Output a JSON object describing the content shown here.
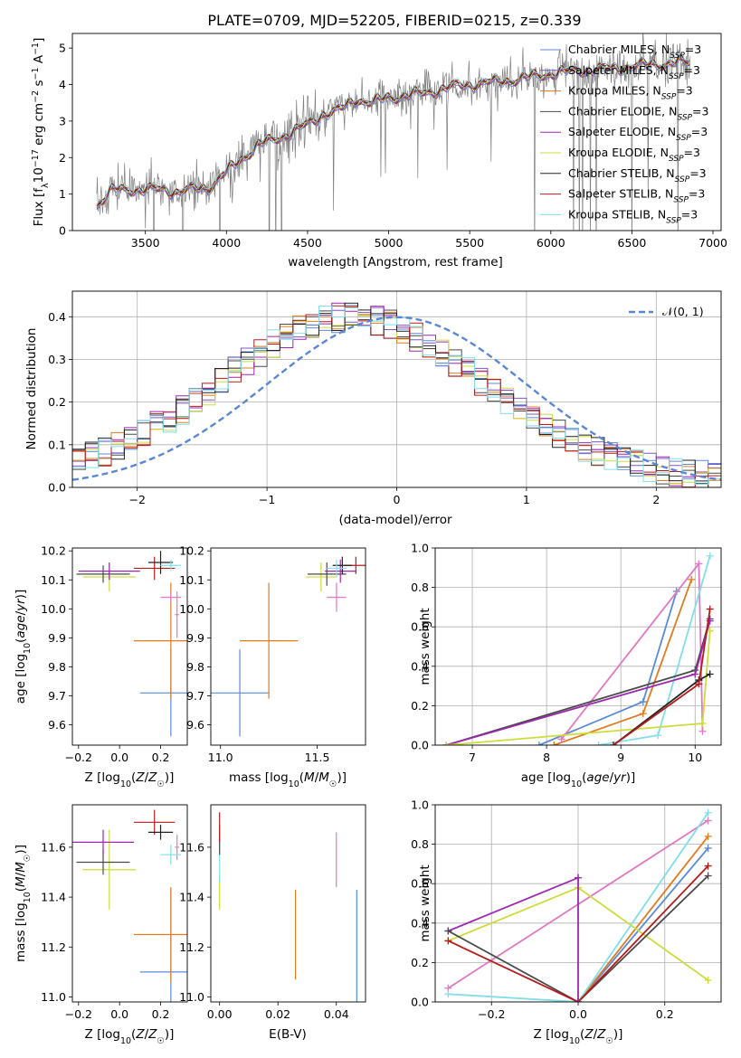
{
  "title": "PLATE=0709, MJD=52205, FIBERID=0215, z=0.339",
  "colors": {
    "data_spectrum": "#808080",
    "Chabrier MILES": "#5a8bd8",
    "Salpeter MILES": "#7e57c2",
    "Kroupa MILES": "#e07b20",
    "Chabrier ELODIE": "#4a4a4a",
    "Salpeter ELODIE": "#9c27b0",
    "Kroupa ELODIE": "#cddc39",
    "Chabrier STELIB": "#222222",
    "Salpeter STELIB": "#b71c1c",
    "Kroupa STELIB": "#80deea",
    "pink": "#e377c2",
    "normal_curve": "#5b86d6"
  },
  "legend_spectrum": [
    {
      "pre": "Chabrier MILES, N",
      "sub": "SSP",
      "post": "=3",
      "color_key": "Chabrier MILES"
    },
    {
      "pre": "Salpeter MILES, N",
      "sub": "SSP",
      "post": "=3",
      "color_key": "Salpeter MILES"
    },
    {
      "pre": "Kroupa MILES, N",
      "sub": "SSP",
      "post": "=3",
      "color_key": "Kroupa MILES"
    },
    {
      "pre": "Chabrier ELODIE, N",
      "sub": "SSP",
      "post": "=3",
      "color_key": "Chabrier ELODIE"
    },
    {
      "pre": "Salpeter ELODIE, N",
      "sub": "SSP",
      "post": "=3",
      "color_key": "Salpeter ELODIE"
    },
    {
      "pre": "Kroupa ELODIE, N",
      "sub": "SSP",
      "post": "=3",
      "color_key": "Kroupa ELODIE"
    },
    {
      "pre": "Chabrier STELIB, N",
      "sub": "SSP",
      "post": "=3",
      "color_key": "Chabrier STELIB"
    },
    {
      "pre": "Salpeter STELIB, N",
      "sub": "SSP",
      "post": "=3",
      "color_key": "Salpeter STELIB"
    },
    {
      "pre": "Kroupa STELIB, N",
      "sub": "SSP",
      "post": "=3",
      "color_key": "Kroupa STELIB"
    }
  ],
  "legend_hist": "𝒩(0, 1)",
  "chart_data": [
    {
      "id": "spectrum",
      "type": "line",
      "xlabel": "wavelength [Angstrom, rest frame]",
      "ylabel": "Flux [f_λ 10^-17 erg cm^-2 s^-1 A^-1]",
      "xlim": [
        3050,
        7050
      ],
      "ylim": [
        0,
        5.4
      ],
      "xticks": [
        "3500",
        "4000",
        "4500",
        "5000",
        "5500",
        "6000",
        "6500",
        "7000"
      ],
      "yticks": [
        "0",
        "1",
        "2",
        "3",
        "4",
        "5"
      ],
      "continuum": {
        "x": [
          3200,
          3300,
          3400,
          3500,
          3600,
          3700,
          3800,
          3900,
          4000,
          4100,
          4200,
          4300,
          4400,
          4500,
          4600,
          4700,
          4800,
          4900,
          5000,
          5200,
          5400,
          5600,
          5800,
          6000,
          6200,
          6400,
          6600,
          6800,
          6860
        ],
        "y": [
          0.7,
          1.1,
          1.15,
          1.1,
          1.15,
          1.05,
          1.15,
          1.2,
          1.6,
          2.0,
          2.35,
          2.5,
          2.7,
          2.9,
          3.2,
          3.3,
          3.6,
          3.5,
          3.65,
          3.75,
          3.95,
          4.05,
          4.15,
          4.3,
          4.4,
          4.45,
          4.55,
          4.6,
          4.6
        ]
      },
      "model_series": [
        "Chabrier MILES",
        "Salpeter MILES",
        "Kroupa MILES",
        "Chabrier ELODIE",
        "Salpeter ELODIE",
        "Kroupa ELODIE",
        "Chabrier STELIB",
        "Salpeter STELIB",
        "Kroupa STELIB"
      ]
    },
    {
      "id": "residuals",
      "type": "histogram",
      "xlabel": "(data-model)/error",
      "ylabel": "Normed distribution",
      "xlim": [
        -2.5,
        2.5
      ],
      "ylim": [
        0,
        0.46
      ],
      "xticks": [
        "−2",
        "−1",
        "0",
        "1",
        "2"
      ],
      "yticks": [
        "0.0",
        "0.1",
        "0.2",
        "0.3",
        "0.4"
      ],
      "bin_width": 0.1,
      "grid": true,
      "reference_curve": "normal(0,1)"
    },
    {
      "id": "age_vs_Z",
      "type": "scatter",
      "xlabel": "Z [log10(Z/Z☉)]",
      "ylabel": "age [log10(age/yr)]",
      "xlim": [
        -0.23,
        0.33
      ],
      "ylim": [
        9.53,
        10.21
      ],
      "xticks": [
        "−0.2",
        "0.0",
        "0.2"
      ],
      "yticks": [
        "9.6",
        "9.7",
        "9.8",
        "9.9",
        "10.0",
        "10.1",
        "10.2"
      ],
      "points": [
        {
          "x": 0.25,
          "y": 9.71,
          "xerr": 0.15,
          "yerr": 0.15,
          "color_key": "Chabrier MILES"
        },
        {
          "x": 0.25,
          "y": 9.89,
          "xerr": 0.18,
          "yerr": 0.2,
          "color_key": "Kroupa MILES"
        },
        {
          "x": 0.28,
          "y": 9.98,
          "xerr": 0.01,
          "yerr": 0.08,
          "color_key": "pink"
        },
        {
          "x": 0.25,
          "y": 10.04,
          "xerr": 0.05,
          "yerr": 0.02,
          "color_key": "pink"
        },
        {
          "x": -0.05,
          "y": 10.11,
          "xerr": 0.13,
          "yerr": 0.05,
          "color_key": "Kroupa ELODIE"
        },
        {
          "x": -0.08,
          "y": 10.12,
          "xerr": 0.13,
          "yerr": 0.03,
          "color_key": "Chabrier ELODIE"
        },
        {
          "x": -0.05,
          "y": 10.13,
          "xerr": 0.15,
          "yerr": 0.03,
          "color_key": "Salpeter ELODIE"
        },
        {
          "x": 0.17,
          "y": 10.14,
          "xerr": 0.1,
          "yerr": 0.04,
          "color_key": "Salpeter STELIB"
        },
        {
          "x": 0.2,
          "y": 10.16,
          "xerr": 0.06,
          "yerr": 0.04,
          "color_key": "Chabrier STELIB"
        },
        {
          "x": 0.25,
          "y": 10.15,
          "xerr": 0.05,
          "yerr": 0.02,
          "color_key": "Kroupa STELIB"
        }
      ]
    },
    {
      "id": "age_vs_mass",
      "type": "scatter",
      "xlabel": "mass [log10(M/M☉)]",
      "ylabel": "",
      "xlim": [
        10.95,
        11.75
      ],
      "ylim": [
        9.53,
        10.21
      ],
      "xticks": [
        "11.0",
        "11.5"
      ],
      "yticks": [
        "9.6",
        "9.7",
        "9.8",
        "9.9",
        "10.0",
        "10.1",
        "10.2"
      ],
      "points": [
        {
          "x": 11.1,
          "y": 9.71,
          "xerr": 0.15,
          "yerr": 0.15,
          "color_key": "Chabrier MILES"
        },
        {
          "x": 11.25,
          "y": 9.89,
          "xerr": 0.15,
          "yerr": 0.2,
          "color_key": "Kroupa MILES"
        },
        {
          "x": 11.6,
          "y": 10.04,
          "xerr": 0.05,
          "yerr": 0.05,
          "color_key": "pink"
        },
        {
          "x": 11.52,
          "y": 10.11,
          "xerr": 0.08,
          "yerr": 0.05,
          "color_key": "Kroupa ELODIE"
        },
        {
          "x": 11.55,
          "y": 10.12,
          "xerr": 0.1,
          "yerr": 0.04,
          "color_key": "Chabrier ELODIE"
        },
        {
          "x": 11.62,
          "y": 10.13,
          "xerr": 0.08,
          "yerr": 0.04,
          "color_key": "Salpeter ELODIE"
        },
        {
          "x": 11.7,
          "y": 10.15,
          "xerr": 0.06,
          "yerr": 0.03,
          "color_key": "Salpeter STELIB"
        },
        {
          "x": 11.63,
          "y": 10.15,
          "xerr": 0.05,
          "yerr": 0.03,
          "color_key": "Chabrier STELIB"
        },
        {
          "x": 11.6,
          "y": 10.14,
          "xerr": 0.05,
          "yerr": 0.03,
          "color_key": "Kroupa STELIB"
        }
      ]
    },
    {
      "id": "weight_vs_age",
      "type": "line",
      "xlabel": "age [log10(age/yr)]",
      "ylabel": "mass weight",
      "xlim": [
        6.5,
        10.35
      ],
      "ylim": [
        0,
        1
      ],
      "xticks": [
        "7",
        "8",
        "9",
        "10"
      ],
      "yticks": [
        "0.0",
        "0.2",
        "0.4",
        "0.6",
        "0.8",
        "1.0"
      ],
      "grid": true,
      "series": [
        {
          "color_key": "Chabrier MILES",
          "x": [
            7.9,
            9.3,
            9.75
          ],
          "y": [
            0.0,
            0.22,
            0.78
          ]
        },
        {
          "color_key": "Kroupa MILES",
          "x": [
            8.1,
            9.3,
            9.95
          ],
          "y": [
            0.0,
            0.16,
            0.84
          ]
        },
        {
          "color_key": "pink",
          "x": [
            8.2,
            10.05,
            10.1
          ],
          "y": [
            0.03,
            0.92,
            0.07
          ]
        },
        {
          "color_key": "Kroupa STELIB",
          "x": [
            8.7,
            9.5,
            10.2
          ],
          "y": [
            0.0,
            0.05,
            0.96
          ]
        },
        {
          "color_key": "Chabrier ELODIE",
          "x": [
            6.65,
            10.0,
            10.2
          ],
          "y": [
            0.0,
            0.38,
            0.64
          ]
        },
        {
          "color_key": "Salpeter ELODIE",
          "x": [
            6.65,
            10.0,
            10.2
          ],
          "y": [
            0.0,
            0.36,
            0.63
          ]
        },
        {
          "color_key": "Kroupa ELODIE",
          "x": [
            6.65,
            10.1,
            10.2
          ],
          "y": [
            0.0,
            0.11,
            0.58
          ]
        },
        {
          "color_key": "Chabrier STELIB",
          "x": [
            8.9,
            10.05,
            10.2
          ],
          "y": [
            0.0,
            0.33,
            0.36
          ]
        },
        {
          "color_key": "Salpeter STELIB",
          "x": [
            8.9,
            10.05,
            10.2
          ],
          "y": [
            0.0,
            0.31,
            0.69
          ]
        }
      ]
    },
    {
      "id": "mass_vs_Z",
      "type": "scatter",
      "xlabel": "Z [log10(Z/Z☉)]",
      "ylabel": "mass [log10(M/M☉)]",
      "xlim": [
        -0.23,
        0.33
      ],
      "ylim": [
        10.98,
        11.77
      ],
      "xticks": [
        "−0.2",
        "0.0",
        "0.2"
      ],
      "yticks": [
        "11.0",
        "11.2",
        "11.4",
        "11.6"
      ],
      "points": [
        {
          "x": 0.25,
          "y": 11.1,
          "xerr": 0.15,
          "yerr": 0.33,
          "color_key": "Chabrier MILES"
        },
        {
          "x": 0.25,
          "y": 11.25,
          "xerr": 0.18,
          "yerr": 0.19,
          "color_key": "Kroupa MILES"
        },
        {
          "x": 0.28,
          "y": 11.6,
          "xerr": 0.01,
          "yerr": 0.05,
          "color_key": "pink"
        },
        {
          "x": -0.05,
          "y": 11.51,
          "xerr": 0.13,
          "yerr": 0.16,
          "color_key": "Kroupa ELODIE"
        },
        {
          "x": -0.08,
          "y": 11.54,
          "xerr": 0.13,
          "yerr": 0.05,
          "color_key": "Chabrier ELODIE"
        },
        {
          "x": -0.08,
          "y": 11.62,
          "xerr": 0.15,
          "yerr": 0.05,
          "color_key": "Salpeter ELODIE"
        },
        {
          "x": 0.17,
          "y": 11.7,
          "xerr": 0.1,
          "yerr": 0.05,
          "color_key": "Salpeter STELIB"
        },
        {
          "x": 0.2,
          "y": 11.66,
          "xerr": 0.06,
          "yerr": 0.03,
          "color_key": "Chabrier STELIB"
        },
        {
          "x": 0.25,
          "y": 11.57,
          "xerr": 0.05,
          "yerr": 0.04,
          "color_key": "Kroupa STELIB"
        }
      ]
    },
    {
      "id": "mass_vs_ebv",
      "type": "scatter",
      "xlabel": "E(B-V)",
      "ylabel": "",
      "xlim": [
        -0.003,
        0.05
      ],
      "ylim": [
        10.98,
        11.77
      ],
      "xticks": [
        "0.00",
        "0.02",
        "0.04"
      ],
      "yticks": [
        "11.0",
        "11.2",
        "11.4",
        "11.6"
      ],
      "points": [
        {
          "x": 0.047,
          "y": 11.1,
          "xerr": 0.0,
          "yerr": 0.33,
          "color_key": "Chabrier MILES"
        },
        {
          "x": 0.026,
          "y": 11.25,
          "xerr": 0.0,
          "yerr": 0.18,
          "color_key": "Kroupa MILES"
        },
        {
          "x": 0.04,
          "y": 11.55,
          "xerr": 0.0,
          "yerr": 0.11,
          "color_key": "pink"
        },
        {
          "x": 0.0,
          "y": 11.42,
          "xerr": 0.0,
          "yerr": 0.07,
          "color_key": "Kroupa ELODIE"
        },
        {
          "x": 0.0,
          "y": 11.56,
          "xerr": 0.0,
          "yerr": 0.1,
          "color_key": "Kroupa STELIB"
        },
        {
          "x": 0.0,
          "y": 11.63,
          "xerr": 0.0,
          "yerr": 0.06,
          "color_key": "Chabrier ELODIE"
        },
        {
          "x": 0.0,
          "y": 11.68,
          "xerr": 0.0,
          "yerr": 0.06,
          "color_key": "Salpeter STELIB"
        }
      ]
    },
    {
      "id": "weight_vs_Z",
      "type": "line",
      "xlabel": "Z [log10(Z/Z☉)]",
      "ylabel": "mass weight",
      "xlim": [
        -0.33,
        0.33
      ],
      "ylim": [
        0,
        1
      ],
      "xticks": [
        "−0.2",
        "0.0",
        "0.2"
      ],
      "yticks": [
        "0.0",
        "0.2",
        "0.4",
        "0.6",
        "0.8",
        "1.0"
      ],
      "grid": true,
      "series": [
        {
          "color_key": "Chabrier MILES",
          "x": [
            0.0,
            0.3
          ],
          "y": [
            0.0,
            0.78
          ]
        },
        {
          "color_key": "Kroupa MILES",
          "x": [
            0.0,
            0.3
          ],
          "y": [
            0.0,
            0.84
          ]
        },
        {
          "color_key": "pink",
          "x": [
            -0.3,
            0.3
          ],
          "y": [
            0.07,
            0.92
          ]
        },
        {
          "color_key": "Kroupa STELIB",
          "x": [
            -0.3,
            0.0,
            0.3
          ],
          "y": [
            0.04,
            0.0,
            0.96
          ]
        },
        {
          "color_key": "Kroupa ELODIE",
          "x": [
            -0.3,
            0.0,
            0.3
          ],
          "y": [
            0.31,
            0.58,
            0.11
          ]
        },
        {
          "color_key": "Salpeter ELODIE",
          "x": [
            -0.3,
            0.0
          ],
          "y": [
            0.36,
            0.63
          ]
        },
        {
          "color_key": "Chabrier ELODIE",
          "x": [
            -0.3,
            0.0,
            0.3
          ],
          "y": [
            0.36,
            0.0,
            0.64
          ]
        },
        {
          "color_key": "Salpeter STELIB",
          "x": [
            -0.3,
            0.0,
            0.3
          ],
          "y": [
            0.31,
            0.0,
            0.69
          ]
        },
        {
          "color_key": "Salpeter ELODIE",
          "x": [
            0.0,
            0.0
          ],
          "y": [
            0.0,
            0.63
          ]
        }
      ]
    }
  ]
}
